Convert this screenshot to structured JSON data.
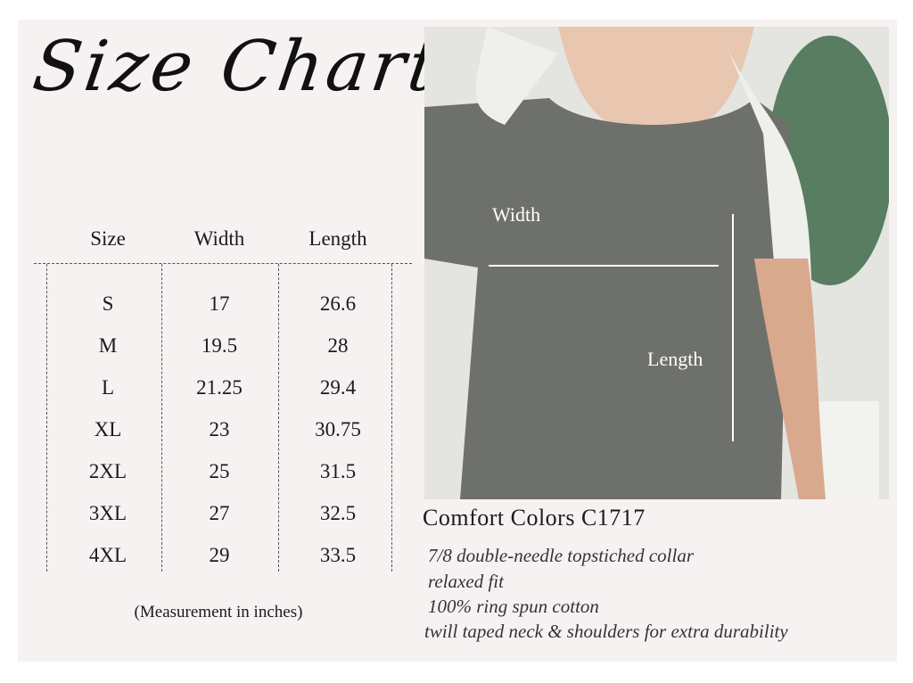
{
  "title": "Size Chart",
  "table": {
    "headers": [
      "Size",
      "Width",
      "Length"
    ],
    "rows": [
      [
        "S",
        "17",
        "26.6"
      ],
      [
        "M",
        "19.5",
        "28"
      ],
      [
        "L",
        "21.25",
        "29.4"
      ],
      [
        "XL",
        "23",
        "30.75"
      ],
      [
        "2XL",
        "25",
        "31.5"
      ],
      [
        "3XL",
        "27",
        "32.5"
      ],
      [
        "4XL",
        "29",
        "33.5"
      ]
    ],
    "note": "(Measurement in inches)"
  },
  "photo": {
    "width_label": "Width",
    "length_label": "Length",
    "shirt_color": "#6e706b"
  },
  "product": {
    "name": "Comfort Colors C1717",
    "features": [
      "7/8 double-needle topstiched collar",
      "relaxed fit",
      "100% ring spun cotton",
      "twill taped neck & shoulders for extra durability"
    ]
  }
}
